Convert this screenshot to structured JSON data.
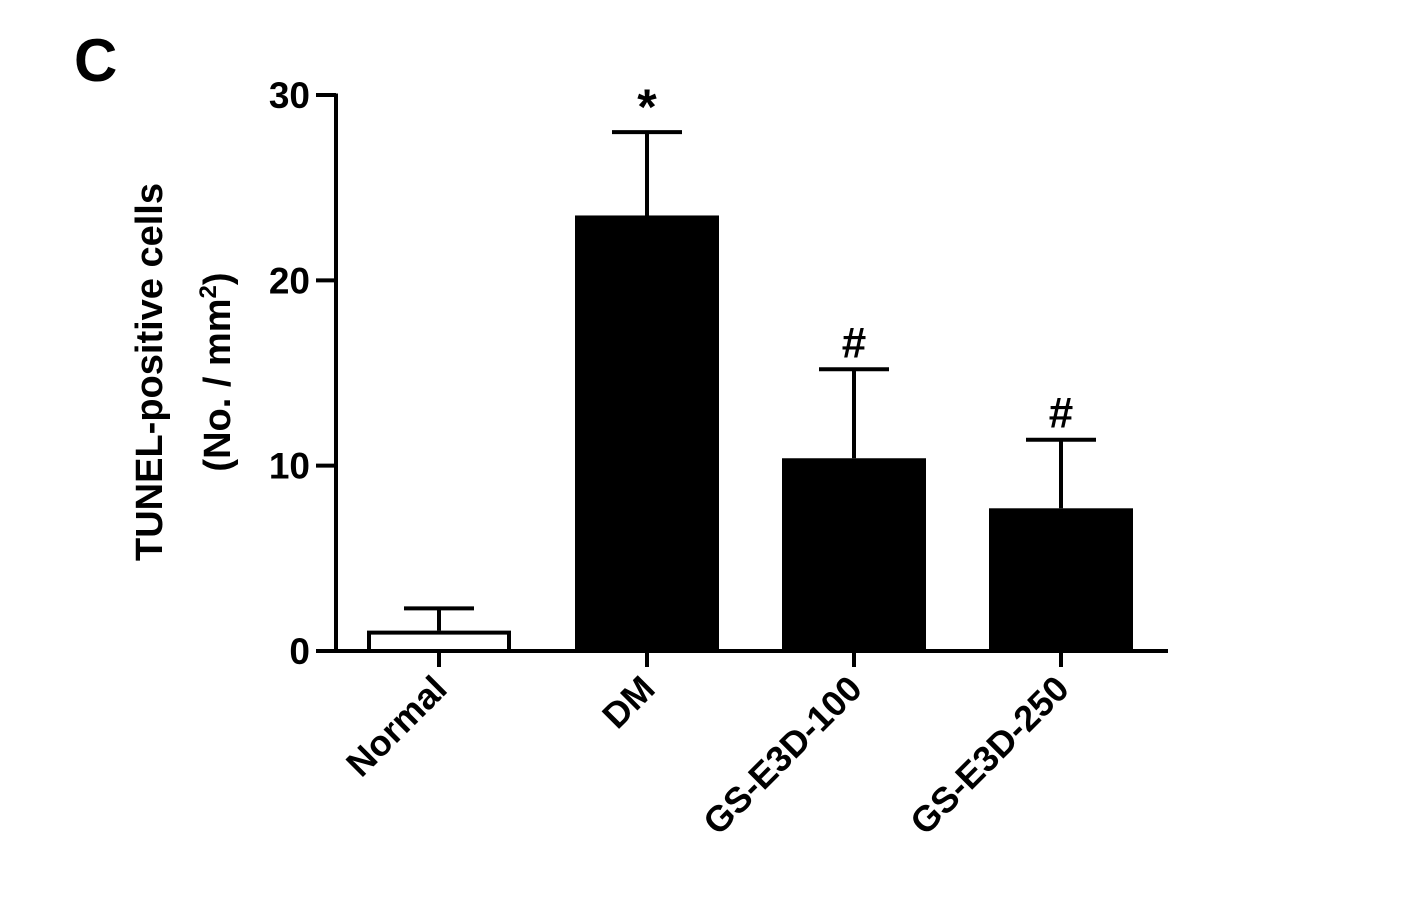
{
  "panel_label": "C",
  "chart_data": {
    "type": "bar",
    "title": "",
    "xlabel": "",
    "ylabel_line1": "TUNEL-positive cells",
    "ylabel_line2_prefix": "(No. / mm",
    "ylabel_line2_superscript": "2",
    "ylabel_line2_suffix": ")",
    "ylim": [
      0,
      30
    ],
    "yticks": [
      0,
      10,
      20,
      30
    ],
    "categories": [
      "Normal",
      "DM",
      "GS-E3D-100",
      "GS-E3D-250"
    ],
    "values": [
      1.1,
      23.5,
      10.4,
      7.7
    ],
    "error_upper": [
      2.3,
      28.0,
      15.2,
      11.4
    ],
    "significance": [
      "",
      "*",
      "#",
      "#"
    ],
    "colors": [
      "#ffffff",
      "#000000",
      "#000000",
      "#000000"
    ],
    "grid": false,
    "legend": "none"
  }
}
